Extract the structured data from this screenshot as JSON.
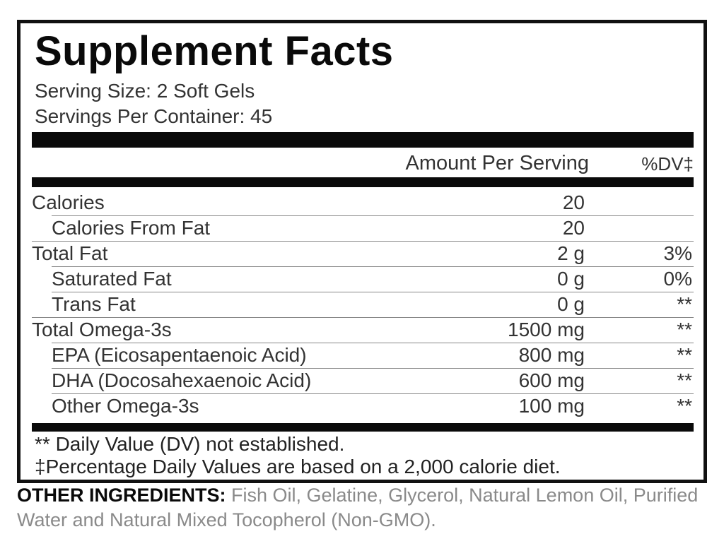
{
  "title": "Supplement Facts",
  "serving_size": "Serving Size: 2 Soft Gels",
  "servings_per_container": "Servings Per Container: 45",
  "header": {
    "amount": "Amount Per Serving",
    "dv": "%DV‡"
  },
  "rows": [
    {
      "name": "Calories",
      "amount": "20",
      "dv": "",
      "indent": false
    },
    {
      "name": "Calories From Fat",
      "amount": "20",
      "dv": "",
      "indent": true
    },
    {
      "name": "Total Fat",
      "amount": "2 g",
      "dv": "3%",
      "indent": false
    },
    {
      "name": "Saturated Fat",
      "amount": "0 g",
      "dv": "0%",
      "indent": true
    },
    {
      "name": "Trans Fat",
      "amount": "0 g",
      "dv": "**",
      "indent": true
    },
    {
      "name": "Total Omega-3s",
      "amount": "1500 mg",
      "dv": "**",
      "indent": false
    },
    {
      "name": "EPA (Eicosapentaenoic Acid)",
      "amount": "800 mg",
      "dv": "**",
      "indent": true
    },
    {
      "name": "DHA (Docosahexaenoic Acid)",
      "amount": "600 mg",
      "dv": "**",
      "indent": true
    },
    {
      "name": "Other Omega-3s",
      "amount": "100 mg",
      "dv": "**",
      "indent": true
    }
  ],
  "footnotes": [
    "** Daily Value (DV) not established.",
    "‡Percentage Daily Values are based on a 2,000 calorie diet."
  ],
  "other_ingredients": {
    "label": "OTHER INGREDIENTS:",
    "text": " Fish Oil, Gelatine, Glycerol, Natural Lemon Oil, Purified Water and Natural Mixed Tocopherol (Non-GMO)."
  }
}
